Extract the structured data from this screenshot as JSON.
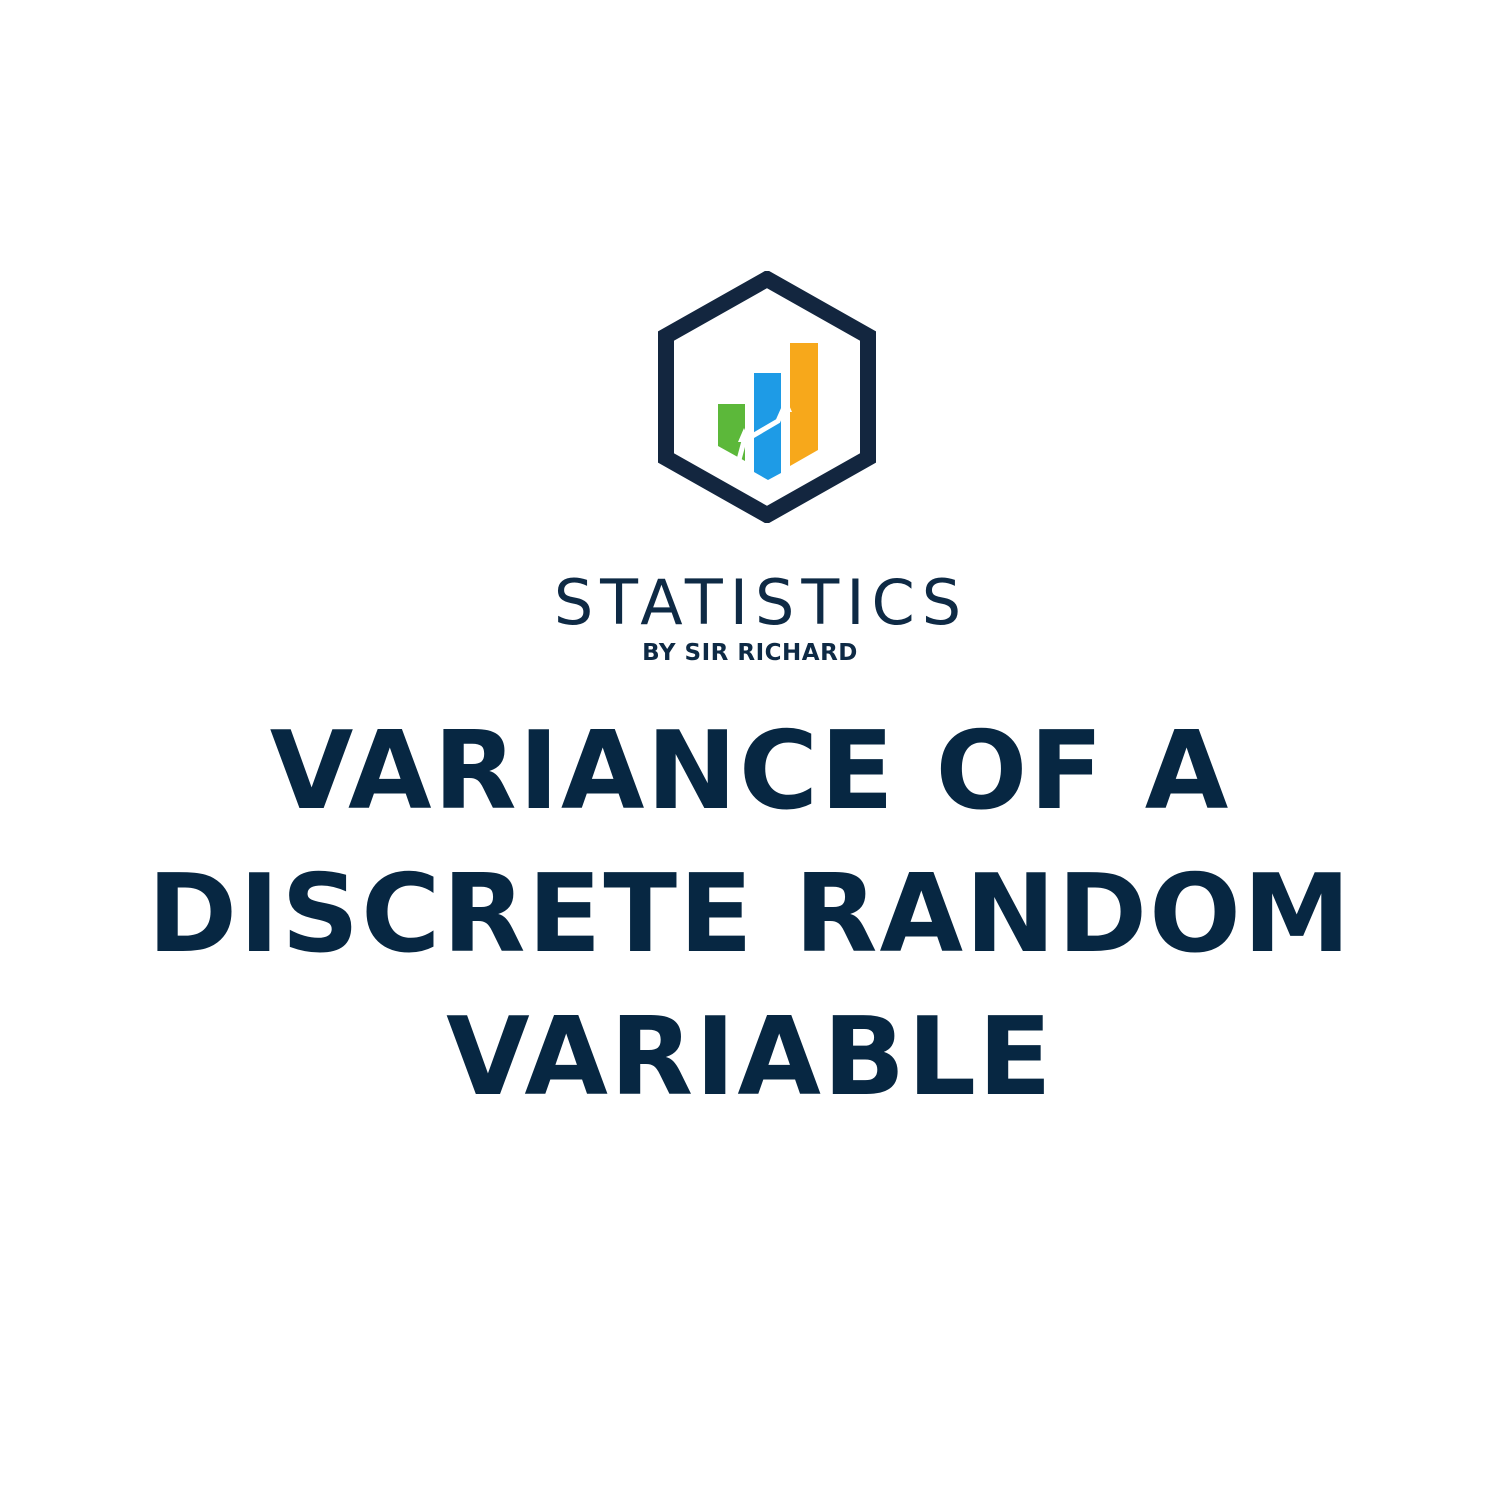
{
  "brand": {
    "name": "STATISTICS",
    "tagline": "BY SIR RICHARD",
    "logo_icon": "hexagon-bar-chart-icon",
    "colors": {
      "navy": "#0e2a45",
      "green": "#5cb83a",
      "blue": "#1e9be6",
      "orange": "#f7a81b"
    }
  },
  "title": {
    "line1": "VARIANCE OF A",
    "line2": "DISCRETE RANDOM",
    "line3": "VARIABLE",
    "color": "#072742"
  }
}
